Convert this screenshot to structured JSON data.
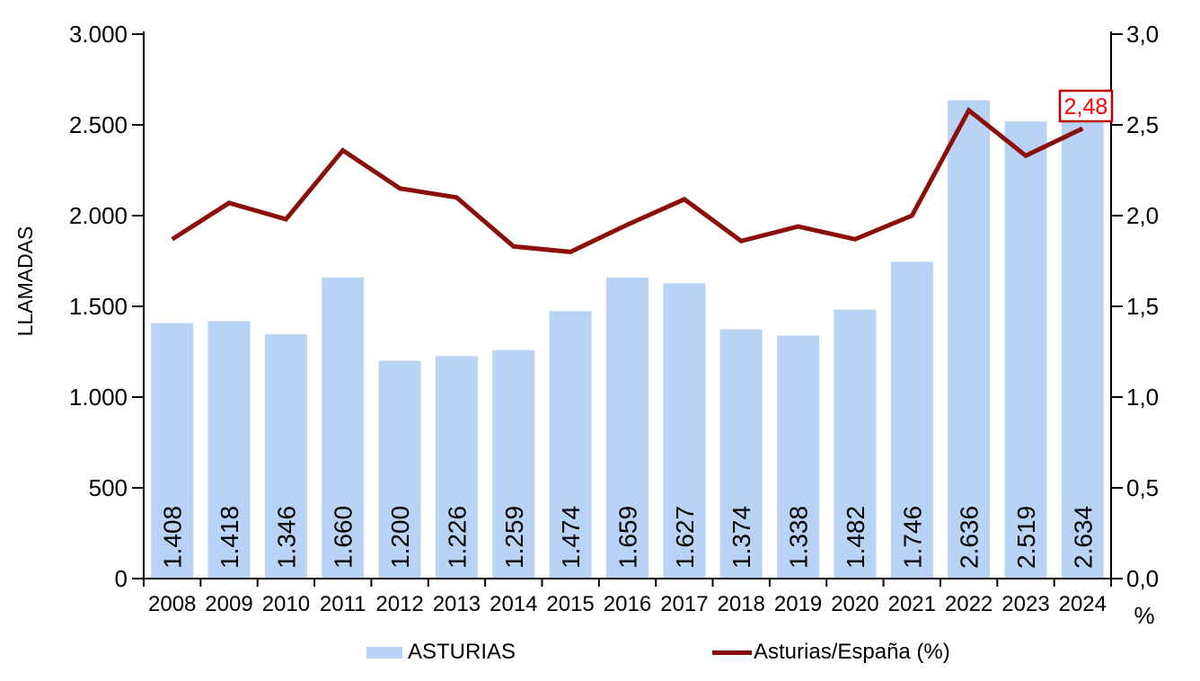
{
  "chart_data": {
    "type": "combo-bar-line",
    "categories": [
      "2008",
      "2009",
      "2010",
      "2011",
      "2012",
      "2013",
      "2014",
      "2015",
      "2016",
      "2017",
      "2018",
      "2019",
      "2020",
      "2021",
      "2022",
      "2023",
      "2024"
    ],
    "series": [
      {
        "name": "ASTURIAS",
        "type": "bar",
        "axis": "left",
        "color": "#B9D3F6",
        "values": [
          1408,
          1418,
          1346,
          1660,
          1200,
          1226,
          1259,
          1474,
          1659,
          1627,
          1374,
          1338,
          1482,
          1746,
          2636,
          2519,
          2634
        ],
        "value_labels": [
          "1.408",
          "1.418",
          "1.346",
          "1.660",
          "1.200",
          "1.226",
          "1.259",
          "1.474",
          "1.659",
          "1.627",
          "1.374",
          "1.338",
          "1.482",
          "1.746",
          "2.636",
          "2.519",
          "2.634"
        ]
      },
      {
        "name": "Asturias/España (%)",
        "type": "line",
        "axis": "right",
        "color": "#8B1009",
        "values": [
          1.87,
          2.07,
          1.98,
          2.36,
          2.15,
          2.1,
          1.83,
          1.8,
          1.95,
          2.09,
          1.86,
          1.94,
          1.87,
          2.0,
          2.58,
          2.33,
          2.48
        ]
      }
    ],
    "left_axis": {
      "title": "LLAMADAS",
      "min": 0,
      "max": 3000,
      "step": 500,
      "tick_labels": [
        "0",
        "500",
        "1.000",
        "1.500",
        "2.000",
        "2.500",
        "3.000"
      ]
    },
    "right_axis": {
      "title": "%",
      "min": 0,
      "max": 3.0,
      "step": 0.5,
      "tick_labels": [
        "0,0",
        "0,5",
        "1,0",
        "1,5",
        "2,0",
        "2,5",
        "3,0"
      ]
    },
    "annotation": {
      "text": "2,48",
      "category": "2024",
      "text_color": "#FF0000",
      "border_color": "#C00000",
      "fill": "#FFFFFF"
    },
    "legend": [
      {
        "label": "ASTURIAS",
        "swatch": "bar"
      },
      {
        "label": "Asturias/España (%)",
        "swatch": "line"
      }
    ],
    "grid": false,
    "legend_position": "bottom",
    "axis_color": "#000000",
    "text_color": "#000000"
  }
}
